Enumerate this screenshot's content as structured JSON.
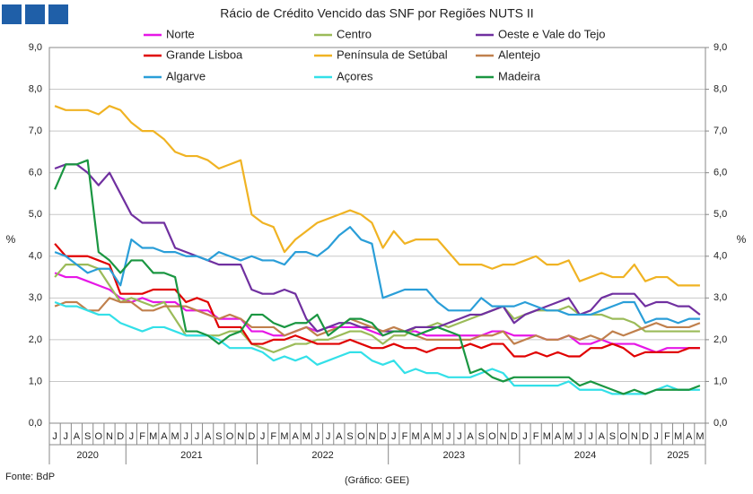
{
  "chart_data": {
    "type": "line",
    "title": "Rácio de Crédito Vencido das SNF por Regiões NUTS II",
    "source": "Fonte: BdP",
    "credit": "(Gráfico: GEE)",
    "y_label": "%",
    "y2_label": "%",
    "categories": [
      "J",
      "J",
      "A",
      "S",
      "O",
      "N",
      "D",
      "J",
      "F",
      "M",
      "A",
      "M",
      "J",
      "J",
      "A",
      "S",
      "O",
      "N",
      "D",
      "J",
      "F",
      "M",
      "A",
      "M",
      "J",
      "J",
      "A",
      "S",
      "O",
      "N",
      "D",
      "J",
      "F",
      "M",
      "A",
      "M",
      "J",
      "J",
      "A",
      "S",
      "O",
      "N",
      "D",
      "J",
      "F",
      "M",
      "A",
      "M",
      "J",
      "J",
      "A",
      "S",
      "O",
      "N",
      "D",
      "J",
      "F",
      "M",
      "A",
      "M"
    ],
    "x_groups": [
      "2020",
      "2021",
      "2022",
      "2023",
      "2024",
      "2025"
    ],
    "ylim": [
      0,
      9
    ],
    "yticks": [
      {
        "value": 0,
        "label": "0,0"
      },
      {
        "value": 1,
        "label": "1,0"
      },
      {
        "value": 2,
        "label": "2,0"
      },
      {
        "value": 3,
        "label": "3,0"
      },
      {
        "value": 4,
        "label": "4,0"
      },
      {
        "value": 5,
        "label": "5,0"
      },
      {
        "value": 6,
        "label": "6,0"
      },
      {
        "value": 7,
        "label": "7,0"
      },
      {
        "value": 8,
        "label": "8,0"
      },
      {
        "value": 9,
        "label": "9,0"
      }
    ],
    "y2lim": [
      0,
      9
    ],
    "y2ticks": [
      {
        "value": 0,
        "label": "0,0"
      },
      {
        "value": 1,
        "label": "1,0"
      },
      {
        "value": 2,
        "label": "2,0"
      },
      {
        "value": 3,
        "label": "3,0"
      },
      {
        "value": 4,
        "label": "4,0"
      },
      {
        "value": 5,
        "label": "5,0"
      },
      {
        "value": 6,
        "label": "6,0"
      },
      {
        "value": 7,
        "label": "7,0"
      },
      {
        "value": 8,
        "label": "8,0"
      },
      {
        "value": 9,
        "label": "9,0"
      }
    ],
    "grid": true,
    "series": [
      {
        "name": "Norte",
        "color": "#e617e6",
        "values": [
          3.6,
          3.5,
          3.5,
          3.4,
          3.3,
          3.2,
          3.0,
          2.9,
          3.0,
          2.9,
          2.9,
          2.9,
          2.7,
          2.7,
          2.7,
          2.5,
          2.5,
          2.5,
          2.2,
          2.2,
          2.1,
          2.1,
          2.2,
          2.3,
          2.2,
          2.3,
          2.3,
          2.3,
          2.3,
          2.2,
          2.1,
          2.2,
          2.2,
          2.2,
          2.1,
          2.1,
          2.1,
          2.1,
          2.1,
          2.1,
          2.2,
          2.2,
          2.1,
          2.1,
          2.1,
          2.0,
          2.0,
          2.1,
          1.9,
          1.9,
          2.0,
          1.9,
          1.9,
          1.9,
          1.8,
          1.7,
          1.8,
          1.8,
          1.8,
          1.8
        ]
      },
      {
        "name": "Centro",
        "color": "#9bbb59",
        "values": [
          3.5,
          3.8,
          3.8,
          3.8,
          3.7,
          3.3,
          2.9,
          3.0,
          2.9,
          2.8,
          2.9,
          2.5,
          2.1,
          2.1,
          2.1,
          2.1,
          2.2,
          2.2,
          1.9,
          1.8,
          1.7,
          1.8,
          1.9,
          1.9,
          2.0,
          2.0,
          2.1,
          2.2,
          2.2,
          2.1,
          1.9,
          2.1,
          2.1,
          2.3,
          2.3,
          2.4,
          2.3,
          2.4,
          2.5,
          2.6,
          2.7,
          2.8,
          2.5,
          2.6,
          2.7,
          2.7,
          2.7,
          2.8,
          2.6,
          2.6,
          2.6,
          2.5,
          2.5,
          2.4,
          2.2,
          2.2,
          2.2,
          2.2,
          2.2,
          2.2
        ]
      },
      {
        "name": "Oeste e Vale do Tejo",
        "color": "#7030a0",
        "values": [
          6.1,
          6.2,
          6.2,
          6.0,
          5.7,
          6.0,
          5.5,
          5.0,
          4.8,
          4.8,
          4.8,
          4.2,
          4.1,
          4.0,
          3.9,
          3.8,
          3.8,
          3.8,
          3.2,
          3.1,
          3.1,
          3.2,
          3.1,
          2.5,
          2.2,
          2.3,
          2.4,
          2.4,
          2.3,
          2.3,
          2.2,
          2.2,
          2.2,
          2.3,
          2.3,
          2.3,
          2.4,
          2.5,
          2.6,
          2.6,
          2.7,
          2.8,
          2.4,
          2.6,
          2.7,
          2.8,
          2.9,
          3.0,
          2.6,
          2.7,
          3.0,
          3.1,
          3.1,
          3.1,
          2.8,
          2.9,
          2.9,
          2.8,
          2.8,
          2.6
        ]
      },
      {
        "name": "Grande Lisboa",
        "color": "#e00000",
        "values": [
          4.3,
          4.0,
          4.0,
          4.0,
          3.9,
          3.8,
          3.1,
          3.1,
          3.1,
          3.2,
          3.2,
          3.2,
          2.9,
          3.0,
          2.9,
          2.3,
          2.3,
          2.3,
          1.9,
          1.9,
          2.0,
          2.0,
          2.1,
          2.0,
          1.9,
          1.9,
          1.9,
          2.0,
          1.9,
          1.8,
          1.8,
          1.9,
          1.8,
          1.8,
          1.7,
          1.8,
          1.8,
          1.8,
          1.9,
          1.8,
          1.9,
          1.9,
          1.6,
          1.6,
          1.7,
          1.6,
          1.7,
          1.6,
          1.6,
          1.8,
          1.8,
          1.9,
          1.8,
          1.6,
          1.7,
          1.7,
          1.7,
          1.7,
          1.8,
          1.8
        ]
      },
      {
        "name": "Península de Setúbal",
        "color": "#f0b323",
        "values": [
          7.6,
          7.5,
          7.5,
          7.5,
          7.4,
          7.6,
          7.5,
          7.2,
          7.0,
          7.0,
          6.8,
          6.5,
          6.4,
          6.4,
          6.3,
          6.1,
          6.2,
          6.3,
          5.0,
          4.8,
          4.7,
          4.1,
          4.4,
          4.6,
          4.8,
          4.9,
          5.0,
          5.1,
          5.0,
          4.8,
          4.2,
          4.6,
          4.3,
          4.4,
          4.4,
          4.4,
          4.1,
          3.8,
          3.8,
          3.8,
          3.7,
          3.8,
          3.8,
          3.9,
          4.0,
          3.8,
          3.8,
          3.9,
          3.4,
          3.5,
          3.6,
          3.5,
          3.5,
          3.8,
          3.4,
          3.5,
          3.5,
          3.3,
          3.3,
          3.3
        ]
      },
      {
        "name": "Alentejo",
        "color": "#c0804d",
        "values": [
          2.8,
          2.9,
          2.9,
          2.7,
          2.7,
          3.0,
          2.9,
          2.9,
          2.7,
          2.7,
          2.8,
          2.8,
          2.8,
          2.7,
          2.6,
          2.5,
          2.6,
          2.5,
          2.3,
          2.3,
          2.3,
          2.1,
          2.2,
          2.3,
          2.1,
          2.2,
          2.3,
          2.5,
          2.4,
          2.3,
          2.2,
          2.3,
          2.2,
          2.1,
          2.0,
          2.0,
          2.0,
          2.0,
          2.0,
          2.1,
          2.1,
          2.2,
          1.9,
          2.0,
          2.1,
          2.0,
          2.0,
          2.1,
          2.0,
          2.1,
          2.0,
          2.2,
          2.1,
          2.2,
          2.3,
          2.4,
          2.3,
          2.3,
          2.3,
          2.4
        ]
      },
      {
        "name": "Algarve",
        "color": "#2a9ed8",
        "values": [
          4.1,
          4.0,
          3.8,
          3.6,
          3.7,
          3.7,
          3.3,
          4.4,
          4.2,
          4.2,
          4.1,
          4.1,
          4.0,
          4.0,
          3.9,
          4.1,
          4.0,
          3.9,
          4.0,
          3.9,
          3.9,
          3.8,
          4.1,
          4.1,
          4.0,
          4.2,
          4.5,
          4.7,
          4.4,
          4.3,
          3.0,
          3.1,
          3.2,
          3.2,
          3.2,
          2.9,
          2.7,
          2.7,
          2.7,
          3.0,
          2.8,
          2.8,
          2.8,
          2.9,
          2.8,
          2.7,
          2.7,
          2.6,
          2.6,
          2.6,
          2.7,
          2.8,
          2.9,
          2.9,
          2.4,
          2.5,
          2.5,
          2.4,
          2.5,
          2.5
        ]
      },
      {
        "name": "Açores",
        "color": "#33e0e8",
        "values": [
          2.9,
          2.8,
          2.8,
          2.7,
          2.6,
          2.6,
          2.4,
          2.3,
          2.2,
          2.3,
          2.3,
          2.2,
          2.1,
          2.1,
          2.1,
          2.0,
          1.8,
          1.8,
          1.8,
          1.7,
          1.5,
          1.6,
          1.5,
          1.6,
          1.4,
          1.5,
          1.6,
          1.7,
          1.7,
          1.5,
          1.4,
          1.5,
          1.2,
          1.3,
          1.2,
          1.2,
          1.1,
          1.1,
          1.1,
          1.2,
          1.3,
          1.2,
          0.9,
          0.9,
          0.9,
          0.9,
          0.9,
          1.0,
          0.8,
          0.8,
          0.8,
          0.7,
          0.7,
          0.7,
          0.7,
          0.8,
          0.9,
          0.8,
          0.8,
          0.8
        ]
      },
      {
        "name": "Madeira",
        "color": "#1a9641",
        "values": [
          5.6,
          6.2,
          6.2,
          6.3,
          4.1,
          3.9,
          3.6,
          3.9,
          3.9,
          3.6,
          3.6,
          3.5,
          2.2,
          2.2,
          2.1,
          1.9,
          2.1,
          2.2,
          2.6,
          2.6,
          2.4,
          2.3,
          2.4,
          2.4,
          2.6,
          2.1,
          2.3,
          2.5,
          2.5,
          2.4,
          2.1,
          2.2,
          2.2,
          2.1,
          2.2,
          2.3,
          2.2,
          2.1,
          1.2,
          1.3,
          1.1,
          1.0,
          1.1,
          1.1,
          1.1,
          1.1,
          1.1,
          1.1,
          0.9,
          1.0,
          0.9,
          0.8,
          0.7,
          0.8,
          0.7,
          0.8,
          0.8,
          0.8,
          0.8,
          0.9
        ]
      }
    ]
  }
}
